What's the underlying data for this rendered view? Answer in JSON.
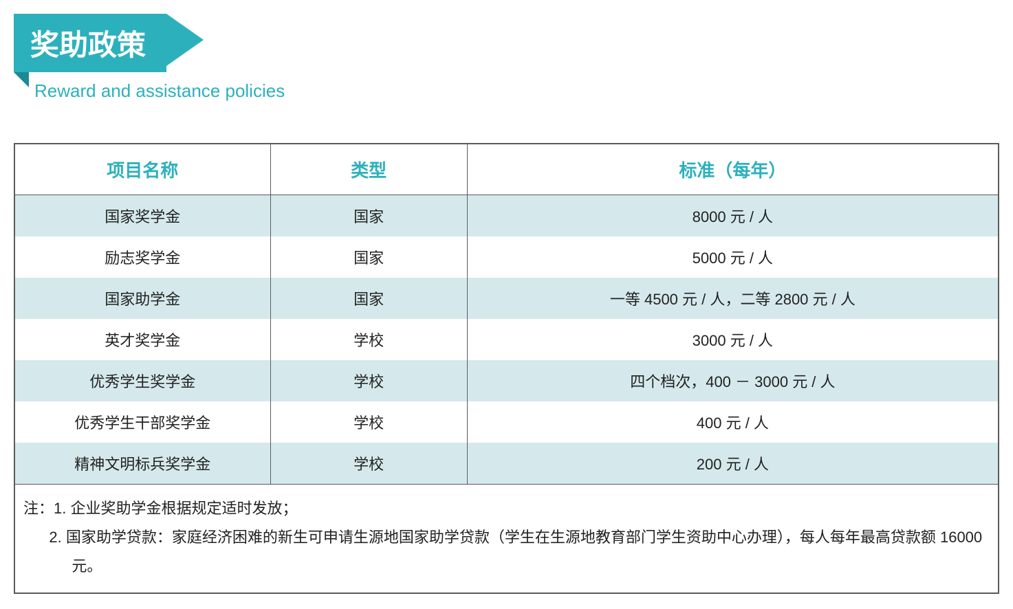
{
  "header": {
    "title_cn": "奖助政策",
    "title_en": "Reward and assistance policies",
    "banner_bg": "#2cb1bc",
    "banner_tab": "#1a8a94",
    "banner_text_color": "#ffffff",
    "subtitle_color": "#2cb1bc"
  },
  "table": {
    "header_color": "#2cb1bc",
    "row_alt_bg": "#d5e9ec",
    "row_bg": "#ffffff",
    "border_color": "#5a5a5a",
    "columns": [
      "项目名称",
      "类型",
      "标准（每年）"
    ],
    "col_widths": [
      "26%",
      "20%",
      "54%"
    ],
    "rows": [
      [
        "国家奖学金",
        "国家",
        "8000 元 / 人"
      ],
      [
        "励志奖学金",
        "国家",
        "5000 元 / 人"
      ],
      [
        "国家助学金",
        "国家",
        "一等 4500 元 / 人，二等 2800 元 / 人"
      ],
      [
        "英才奖学金",
        "学校",
        "3000 元 / 人"
      ],
      [
        "优秀学生奖学金",
        "学校",
        "四个档次，400 － 3000 元 / 人"
      ],
      [
        "优秀学生干部奖学金",
        "学校",
        "400 元 / 人"
      ],
      [
        "精神文明标兵奖学金",
        "学校",
        "200 元 / 人"
      ]
    ],
    "notes": {
      "prefix": "注：",
      "line1": "1. 企业奖助学金根据规定适时发放；",
      "line2": "2. 国家助学贷款：家庭经济困难的新生可申请生源地国家助学贷款（学生在生源地教育部门学生资助中心办理），每人每年最高贷款额 16000 元。"
    }
  }
}
